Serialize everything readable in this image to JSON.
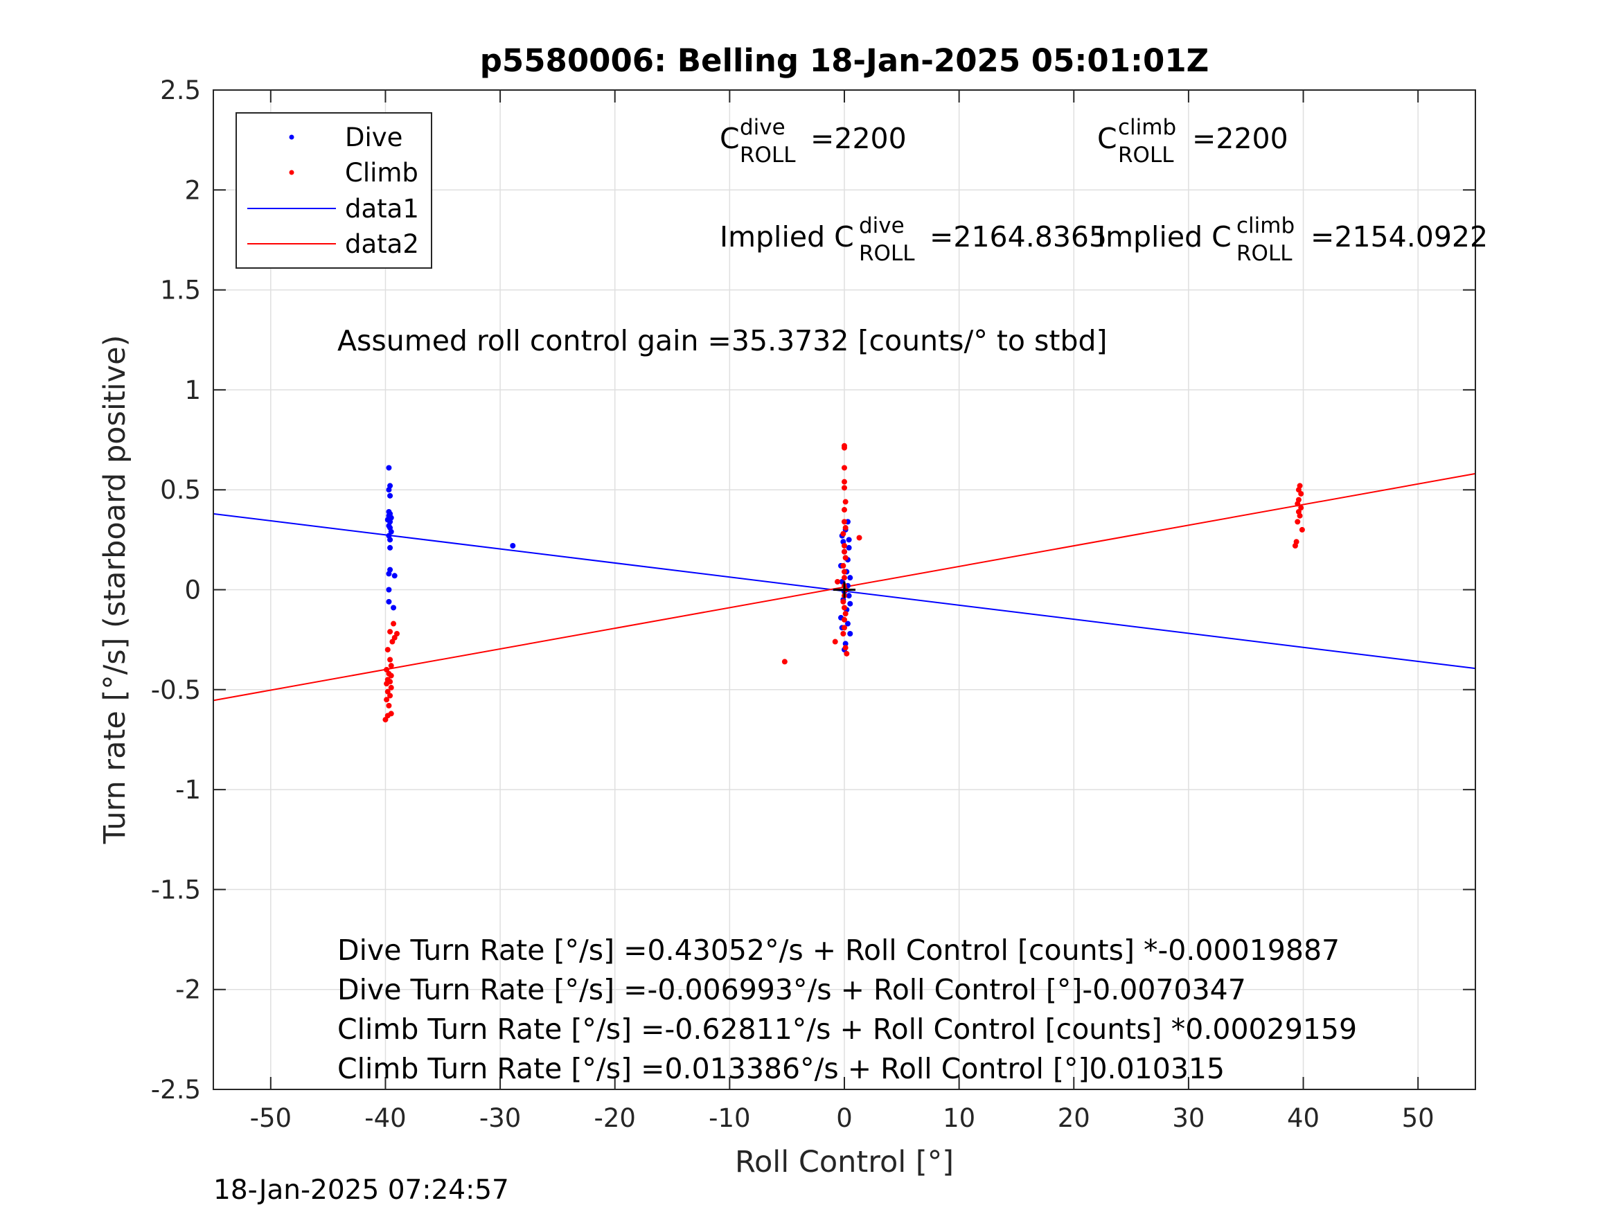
{
  "chart_data": {
    "type": "scatter",
    "title": "p5580006: Belling 18-Jan-2025 05:01:01Z",
    "xlabel": "Roll Control [°]",
    "ylabel": "Turn rate [°/s] (starboard positive)",
    "xlim": [
      -55,
      55
    ],
    "ylim": [
      -2.5,
      2.5
    ],
    "xticks": [
      -50,
      -40,
      -30,
      -20,
      -10,
      0,
      10,
      20,
      30,
      40,
      50
    ],
    "yticks": [
      -2.5,
      -2,
      -1.5,
      -1,
      -0.5,
      0,
      0.5,
      1,
      1.5,
      2,
      2.5
    ],
    "xtick_labels": [
      "-50",
      "-40",
      "-30",
      "-20",
      "-10",
      "0",
      "10",
      "20",
      "30",
      "40",
      "50"
    ],
    "ytick_labels": [
      "-2.5",
      "-2",
      "-1.5",
      "-1",
      "-0.5",
      "0",
      "0.5",
      "1",
      "1.5",
      "2",
      "2.5"
    ],
    "grid": true,
    "legend_position": "top-left",
    "series": [
      {
        "name": "Dive",
        "kind": "points",
        "color": "#0000ff",
        "points": [
          [
            -39.7,
            0.61
          ],
          [
            -39.6,
            0.52
          ],
          [
            -39.7,
            0.5
          ],
          [
            -39.6,
            0.47
          ],
          [
            -39.7,
            0.39
          ],
          [
            -39.6,
            0.38
          ],
          [
            -39.7,
            0.37
          ],
          [
            -39.5,
            0.36
          ],
          [
            -39.8,
            0.35
          ],
          [
            -39.6,
            0.34
          ],
          [
            -39.7,
            0.32
          ],
          [
            -39.6,
            0.31
          ],
          [
            -39.5,
            0.29
          ],
          [
            -39.7,
            0.27
          ],
          [
            -39.6,
            0.25
          ],
          [
            -39.6,
            0.21
          ],
          [
            -39.6,
            0.1
          ],
          [
            -39.7,
            0.08
          ],
          [
            -39.2,
            0.07
          ],
          [
            -39.7,
            0.0
          ],
          [
            -39.7,
            -0.06
          ],
          [
            -39.3,
            -0.09
          ],
          [
            -28.9,
            0.22
          ],
          [
            0.3,
            0.34
          ],
          [
            0.1,
            0.3
          ],
          [
            -0.2,
            0.27
          ],
          [
            0.4,
            0.25
          ],
          [
            -0.1,
            0.24
          ],
          [
            0.4,
            0.21
          ],
          [
            0.0,
            0.19
          ],
          [
            0.3,
            0.15
          ],
          [
            -0.3,
            0.12
          ],
          [
            0.2,
            0.09
          ],
          [
            0.5,
            0.06
          ],
          [
            -0.2,
            0.04
          ],
          [
            0.3,
            0.02
          ],
          [
            0.0,
            -0.01
          ],
          [
            0.4,
            -0.03
          ],
          [
            -0.1,
            -0.05
          ],
          [
            0.5,
            -0.07
          ],
          [
            0.2,
            -0.1
          ],
          [
            -0.3,
            -0.14
          ],
          [
            0.3,
            -0.17
          ],
          [
            -0.2,
            -0.19
          ],
          [
            0.5,
            -0.22
          ],
          [
            0.1,
            -0.27
          ],
          [
            0.0,
            -0.3
          ]
        ]
      },
      {
        "name": "Climb",
        "kind": "points",
        "color": "#ff0000",
        "points": [
          [
            -39.3,
            -0.17
          ],
          [
            -39.0,
            -0.22
          ],
          [
            -39.6,
            -0.21
          ],
          [
            -39.4,
            -0.26
          ],
          [
            -39.2,
            -0.24
          ],
          [
            -39.8,
            -0.3
          ],
          [
            -39.6,
            -0.35
          ],
          [
            -39.5,
            -0.38
          ],
          [
            -39.9,
            -0.4
          ],
          [
            -39.7,
            -0.42
          ],
          [
            -39.5,
            -0.43
          ],
          [
            -39.8,
            -0.45
          ],
          [
            -39.6,
            -0.46
          ],
          [
            -39.9,
            -0.47
          ],
          [
            -39.5,
            -0.49
          ],
          [
            -39.8,
            -0.51
          ],
          [
            -39.6,
            -0.53
          ],
          [
            -39.9,
            -0.55
          ],
          [
            -39.7,
            -0.58
          ],
          [
            -39.5,
            -0.62
          ],
          [
            -39.8,
            -0.63
          ],
          [
            -40.0,
            -0.65
          ],
          [
            -5.2,
            -0.36
          ],
          [
            0.0,
            0.72
          ],
          [
            0.0,
            0.71
          ],
          [
            0.0,
            0.61
          ],
          [
            0.0,
            0.54
          ],
          [
            0.0,
            0.51
          ],
          [
            0.1,
            0.44
          ],
          [
            0.0,
            0.4
          ],
          [
            0.0,
            0.34
          ],
          [
            0.1,
            0.31
          ],
          [
            -0.1,
            0.28
          ],
          [
            1.3,
            0.26
          ],
          [
            0.0,
            0.22
          ],
          [
            0.0,
            0.19
          ],
          [
            0.1,
            0.16
          ],
          [
            -0.1,
            0.12
          ],
          [
            0.0,
            0.09
          ],
          [
            0.0,
            0.06
          ],
          [
            -0.6,
            0.04
          ],
          [
            0.0,
            0.02
          ],
          [
            0.1,
            0.0
          ],
          [
            0.0,
            -0.03
          ],
          [
            -0.1,
            -0.06
          ],
          [
            0.0,
            -0.09
          ],
          [
            0.1,
            -0.12
          ],
          [
            0.0,
            -0.15
          ],
          [
            0.0,
            -0.19
          ],
          [
            -0.1,
            -0.22
          ],
          [
            -0.8,
            -0.26
          ],
          [
            0.1,
            -0.29
          ],
          [
            0.2,
            -0.32
          ],
          [
            39.7,
            0.52
          ],
          [
            39.6,
            0.5
          ],
          [
            39.8,
            0.48
          ],
          [
            39.6,
            0.45
          ],
          [
            39.5,
            0.43
          ],
          [
            39.8,
            0.41
          ],
          [
            39.6,
            0.39
          ],
          [
            39.7,
            0.37
          ],
          [
            39.5,
            0.34
          ],
          [
            39.9,
            0.3
          ],
          [
            39.4,
            0.24
          ],
          [
            39.3,
            0.22
          ]
        ]
      },
      {
        "name": "data1",
        "kind": "line",
        "color": "#0000ff",
        "intercept": -0.006993,
        "slope": -0.0070347
      },
      {
        "name": "data2",
        "kind": "line",
        "color": "#ff0000",
        "intercept": 0.013386,
        "slope": 0.010315
      }
    ],
    "annotations": {
      "c_roll_dive": {
        "base": "C",
        "sup": "dive",
        "sub": "ROLL",
        "value": "=2200"
      },
      "c_roll_climb": {
        "base": "C",
        "sup": "climb",
        "sub": "ROLL",
        "value": "=2200"
      },
      "implied_dive": {
        "prefix": "Implied C",
        "sup": "dive",
        "sub": "ROLL",
        "value": "=2164.8365"
      },
      "implied_climb": {
        "prefix": "Implied C",
        "sup": "climb",
        "sub": "ROLL",
        "value": "=2154.0922"
      },
      "gain": "Assumed roll control gain =35.3732 [counts/° to stbd]",
      "equations": [
        "Dive Turn Rate [°/s] =0.43052°/s + Roll Control [counts] *-0.00019887",
        "Dive Turn Rate [°/s] =-0.006993°/s + Roll Control [°]-0.0070347",
        "Climb Turn Rate [°/s] =-0.62811°/s + Roll Control [counts] *0.00029159",
        "Climb Turn Rate [°/s] =0.013386°/s + Roll Control [°]0.010315"
      ]
    },
    "timestamp": "18-Jan-2025 07:24:57"
  }
}
